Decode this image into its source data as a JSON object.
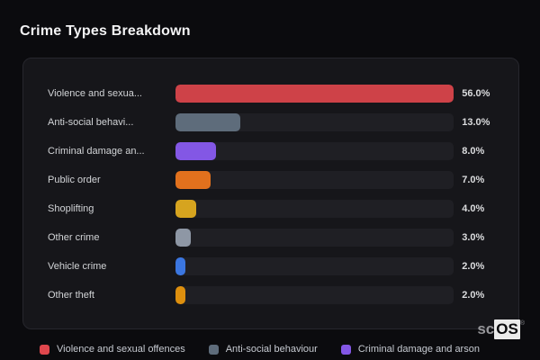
{
  "page": {
    "title": "Crime Types Breakdown"
  },
  "watermark": {
    "prefix": "sc",
    "box": "OS",
    "reg": "®"
  },
  "chart_data": {
    "type": "bar",
    "orientation": "horizontal",
    "title": "Crime Types Breakdown",
    "scale_max": 56,
    "grid": false,
    "legend_position": "bottom",
    "categories": [
      "Violence and sexua...",
      "Anti-social behavi...",
      "Criminal damage an...",
      "Public order",
      "Shoplifting",
      "Other crime",
      "Vehicle crime",
      "Other theft"
    ],
    "values": [
      56.0,
      13.0,
      8.0,
      7.0,
      4.0,
      3.0,
      2.0,
      2.0
    ],
    "value_labels": [
      "56.0%",
      "13.0%",
      "8.0%",
      "7.0%",
      "4.0%",
      "3.0%",
      "2.0%",
      "2.0%"
    ],
    "colors": [
      "#ce4248",
      "#5e6c7b",
      "#8357e5",
      "#e2711d",
      "#d6a41f",
      "#8e97a5",
      "#3b76e0",
      "#dd8f0e"
    ],
    "legend": [
      {
        "label": "Violence and sexual offences",
        "color": "#e0474d"
      },
      {
        "label": "Anti-social behaviour",
        "color": "#5e6c7b"
      },
      {
        "label": "Criminal damage and arson",
        "color": "#8357e5"
      }
    ]
  }
}
